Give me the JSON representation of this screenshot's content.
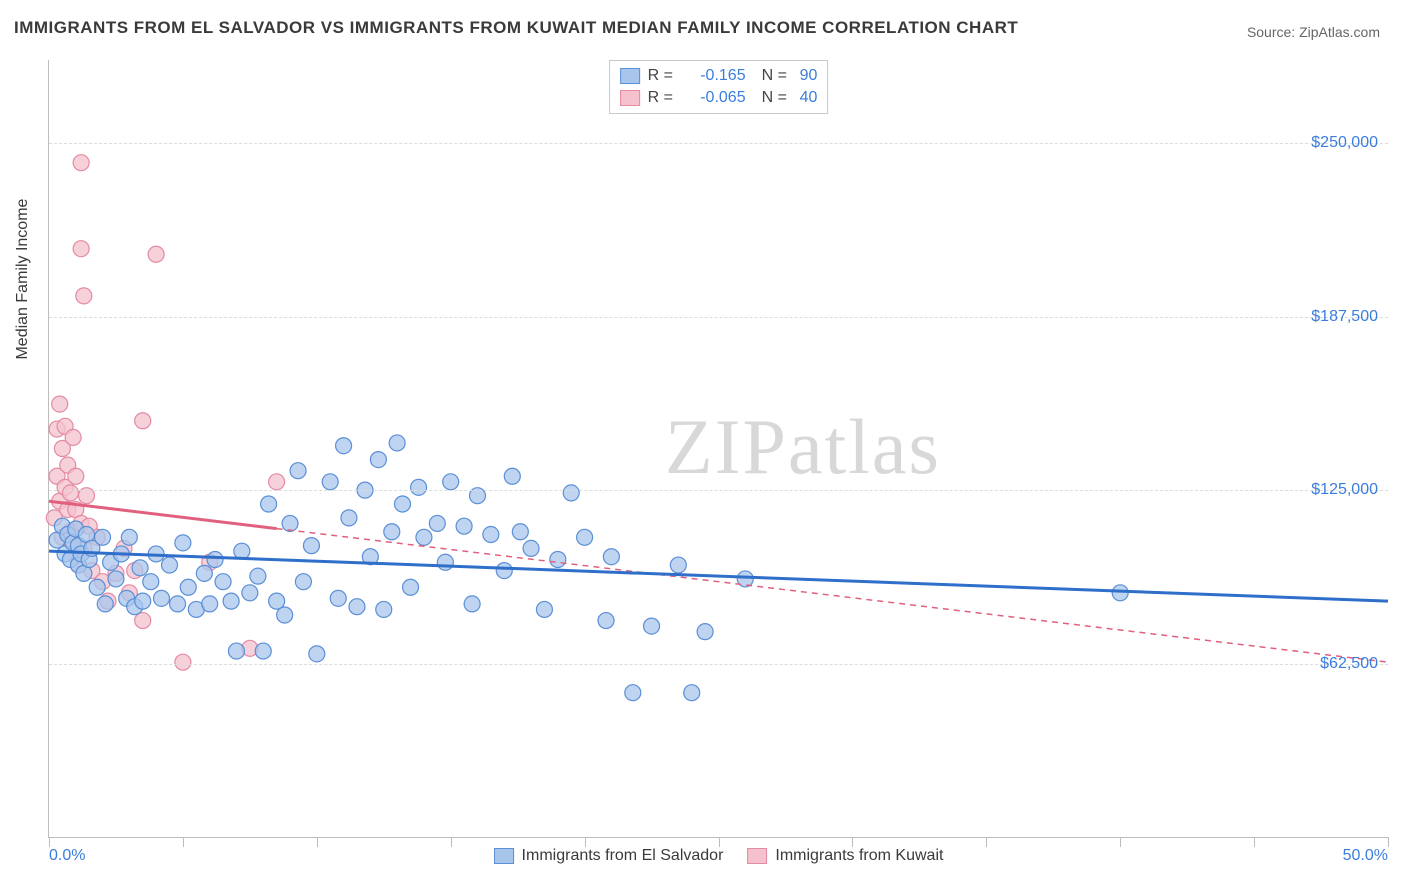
{
  "title": "IMMIGRANTS FROM EL SALVADOR VS IMMIGRANTS FROM KUWAIT MEDIAN FAMILY INCOME CORRELATION CHART",
  "source_prefix": "Source: ",
  "source_name": "ZipAtlas.com",
  "yaxis_label": "Median Family Income",
  "watermark_a": "ZIP",
  "watermark_b": "atlas",
  "chart": {
    "type": "scatter",
    "background_color": "#ffffff",
    "grid_color": "#dcdcdc",
    "axis_color": "#bdbdbd",
    "tick_label_color": "#3b7ddd",
    "title_color": "#3a3a3a",
    "title_fontsize": 17,
    "label_fontsize": 16,
    "tick_fontsize": 16,
    "xlim": [
      0,
      50
    ],
    "ylim": [
      0,
      280000
    ],
    "xtick_step": 5,
    "x_axis_labels": {
      "left": "0.0%",
      "right": "50.0%"
    },
    "yticks": [
      {
        "value": 62500,
        "label": "$62,500"
      },
      {
        "value": 125000,
        "label": "$125,000"
      },
      {
        "value": 187500,
        "label": "$187,500"
      },
      {
        "value": 250000,
        "label": "$250,000"
      }
    ],
    "marker_radius": 8,
    "marker_stroke_width": 1.2,
    "trend_line_width": 3,
    "trend_dash_width": 1.5,
    "series": [
      {
        "id": "el_salvador",
        "name": "Immigrants from El Salvador",
        "fill_color": "#a8c6ec",
        "stroke_color": "#5b8fd6",
        "trend_color": "#2f6fc9",
        "R_label": "R =",
        "R": "-0.165",
        "N_label": "N =",
        "N": "90",
        "trend": {
          "x1": 0,
          "y1": 103000,
          "x2": 50,
          "y2": 85000,
          "solid_until_x": 50
        },
        "points": [
          [
            0.3,
            107000
          ],
          [
            0.5,
            112000
          ],
          [
            0.6,
            102000
          ],
          [
            0.7,
            109000
          ],
          [
            0.8,
            100000
          ],
          [
            0.9,
            106000
          ],
          [
            1.0,
            111000
          ],
          [
            1.1,
            98000
          ],
          [
            1.1,
            105000
          ],
          [
            1.2,
            102000
          ],
          [
            1.3,
            95000
          ],
          [
            1.4,
            109000
          ],
          [
            1.5,
            100000
          ],
          [
            1.6,
            104000
          ],
          [
            1.8,
            90000
          ],
          [
            2.0,
            108000
          ],
          [
            2.1,
            84000
          ],
          [
            2.3,
            99000
          ],
          [
            2.5,
            93000
          ],
          [
            2.7,
            102000
          ],
          [
            2.9,
            86000
          ],
          [
            3.0,
            108000
          ],
          [
            3.2,
            83000
          ],
          [
            3.4,
            97000
          ],
          [
            3.5,
            85000
          ],
          [
            3.8,
            92000
          ],
          [
            4.0,
            102000
          ],
          [
            4.2,
            86000
          ],
          [
            4.5,
            98000
          ],
          [
            4.8,
            84000
          ],
          [
            5.0,
            106000
          ],
          [
            5.2,
            90000
          ],
          [
            5.5,
            82000
          ],
          [
            5.8,
            95000
          ],
          [
            6.0,
            84000
          ],
          [
            6.2,
            100000
          ],
          [
            6.5,
            92000
          ],
          [
            6.8,
            85000
          ],
          [
            7.0,
            67000
          ],
          [
            7.2,
            103000
          ],
          [
            7.5,
            88000
          ],
          [
            7.8,
            94000
          ],
          [
            8.0,
            67000
          ],
          [
            8.2,
            120000
          ],
          [
            8.5,
            85000
          ],
          [
            8.8,
            80000
          ],
          [
            9.0,
            113000
          ],
          [
            9.3,
            132000
          ],
          [
            9.5,
            92000
          ],
          [
            9.8,
            105000
          ],
          [
            10.0,
            66000
          ],
          [
            10.5,
            128000
          ],
          [
            10.8,
            86000
          ],
          [
            11.0,
            141000
          ],
          [
            11.2,
            115000
          ],
          [
            11.5,
            83000
          ],
          [
            11.8,
            125000
          ],
          [
            12.0,
            101000
          ],
          [
            12.3,
            136000
          ],
          [
            12.5,
            82000
          ],
          [
            12.8,
            110000
          ],
          [
            13.0,
            142000
          ],
          [
            13.2,
            120000
          ],
          [
            13.5,
            90000
          ],
          [
            13.8,
            126000
          ],
          [
            14.0,
            108000
          ],
          [
            14.5,
            113000
          ],
          [
            14.8,
            99000
          ],
          [
            15.0,
            128000
          ],
          [
            15.5,
            112000
          ],
          [
            15.8,
            84000
          ],
          [
            16.0,
            123000
          ],
          [
            16.5,
            109000
          ],
          [
            17.0,
            96000
          ],
          [
            17.3,
            130000
          ],
          [
            17.6,
            110000
          ],
          [
            18.0,
            104000
          ],
          [
            18.5,
            82000
          ],
          [
            19.0,
            100000
          ],
          [
            19.5,
            124000
          ],
          [
            20.0,
            108000
          ],
          [
            20.8,
            78000
          ],
          [
            21.0,
            101000
          ],
          [
            21.8,
            52000
          ],
          [
            22.5,
            76000
          ],
          [
            23.5,
            98000
          ],
          [
            24.0,
            52000
          ],
          [
            24.5,
            74000
          ],
          [
            26.0,
            93000
          ],
          [
            40.0,
            88000
          ]
        ]
      },
      {
        "id": "kuwait",
        "name": "Immigrants from Kuwait",
        "fill_color": "#f4c1cd",
        "stroke_color": "#e48aa3",
        "trend_color": "#e0607e",
        "R_label": "R =",
        "R": "-0.065",
        "N_label": "N =",
        "N": "40",
        "trend": {
          "x1": 0,
          "y1": 121000,
          "x2": 50,
          "y2": 63000,
          "solid_until_x": 8.5
        },
        "points": [
          [
            0.2,
            115000
          ],
          [
            0.3,
            147000
          ],
          [
            0.3,
            130000
          ],
          [
            0.4,
            156000
          ],
          [
            0.4,
            121000
          ],
          [
            0.5,
            140000
          ],
          [
            0.5,
            108000
          ],
          [
            0.6,
            126000
          ],
          [
            0.6,
            148000
          ],
          [
            0.7,
            118000
          ],
          [
            0.7,
            134000
          ],
          [
            0.8,
            110000
          ],
          [
            0.8,
            124000
          ],
          [
            0.9,
            144000
          ],
          [
            0.9,
            106000
          ],
          [
            1.0,
            118000
          ],
          [
            1.0,
            130000
          ],
          [
            1.1,
            98000
          ],
          [
            1.2,
            113000
          ],
          [
            1.3,
            104000
          ],
          [
            1.4,
            123000
          ],
          [
            1.5,
            112000
          ],
          [
            1.6,
            96000
          ],
          [
            1.8,
            108000
          ],
          [
            2.0,
            92000
          ],
          [
            2.2,
            85000
          ],
          [
            2.5,
            95000
          ],
          [
            2.8,
            104000
          ],
          [
            3.0,
            88000
          ],
          [
            3.2,
            96000
          ],
          [
            3.5,
            78000
          ],
          [
            1.2,
            243000
          ],
          [
            1.3,
            195000
          ],
          [
            1.2,
            212000
          ],
          [
            3.5,
            150000
          ],
          [
            4.0,
            210000
          ],
          [
            5.0,
            63000
          ],
          [
            6.0,
            99000
          ],
          [
            7.5,
            68000
          ],
          [
            8.5,
            128000
          ]
        ]
      }
    ]
  }
}
